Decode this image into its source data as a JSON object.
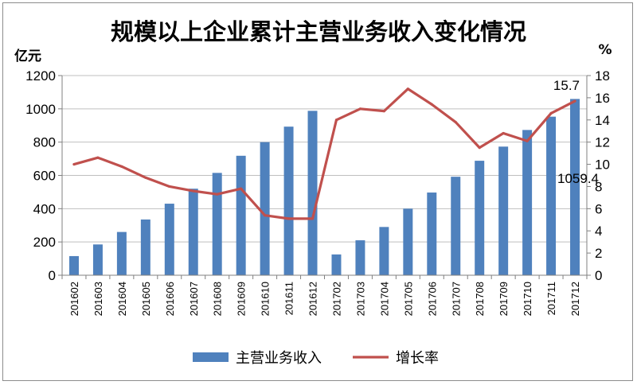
{
  "chart_data": {
    "type": "bar+line",
    "title": "规模以上企业累计主营业务收入变化情况",
    "y_left_unit": "亿元",
    "y_right_unit": "%",
    "ylim_left": [
      0,
      1200
    ],
    "yticks_left": [
      "0",
      "200",
      "400",
      "600",
      "800",
      "1000",
      "1200"
    ],
    "ylim_right": [
      0,
      18
    ],
    "yticks_right": [
      "0",
      "2",
      "4",
      "6",
      "8",
      "10",
      "12",
      "14",
      "16",
      "18"
    ],
    "categories": [
      "201602",
      "201603",
      "201604",
      "201605",
      "201606",
      "201607",
      "201608",
      "201609",
      "201610",
      "201611",
      "201612",
      "201702",
      "201703",
      "201704",
      "201705",
      "201706",
      "201707",
      "201708",
      "201709",
      "201710",
      "201711",
      "201712"
    ],
    "series": [
      {
        "name": "主营业务收入",
        "kind": "bar",
        "axis": "left",
        "color": "#4f81bd",
        "values": [
          115,
          185,
          260,
          335,
          430,
          520,
          615,
          718,
          800,
          893,
          988,
          125,
          210,
          290,
          400,
          497,
          592,
          688,
          773,
          873,
          953,
          1059.4
        ]
      },
      {
        "name": "增长率",
        "kind": "line",
        "axis": "right",
        "color": "#c0504d",
        "values": [
          10.0,
          10.6,
          9.8,
          8.8,
          8.0,
          7.6,
          7.3,
          7.8,
          5.4,
          5.1,
          5.1,
          14.0,
          15.0,
          14.8,
          16.8,
          15.4,
          13.8,
          11.5,
          12.8,
          12.1,
          14.6,
          15.7
        ]
      }
    ],
    "data_labels": [
      {
        "series": "增长率",
        "category": "201712",
        "text": "15.7"
      },
      {
        "series": "主营业务收入",
        "category": "201712",
        "text": "1059.4"
      }
    ],
    "legend_position": "bottom",
    "grid": "horizontal"
  }
}
